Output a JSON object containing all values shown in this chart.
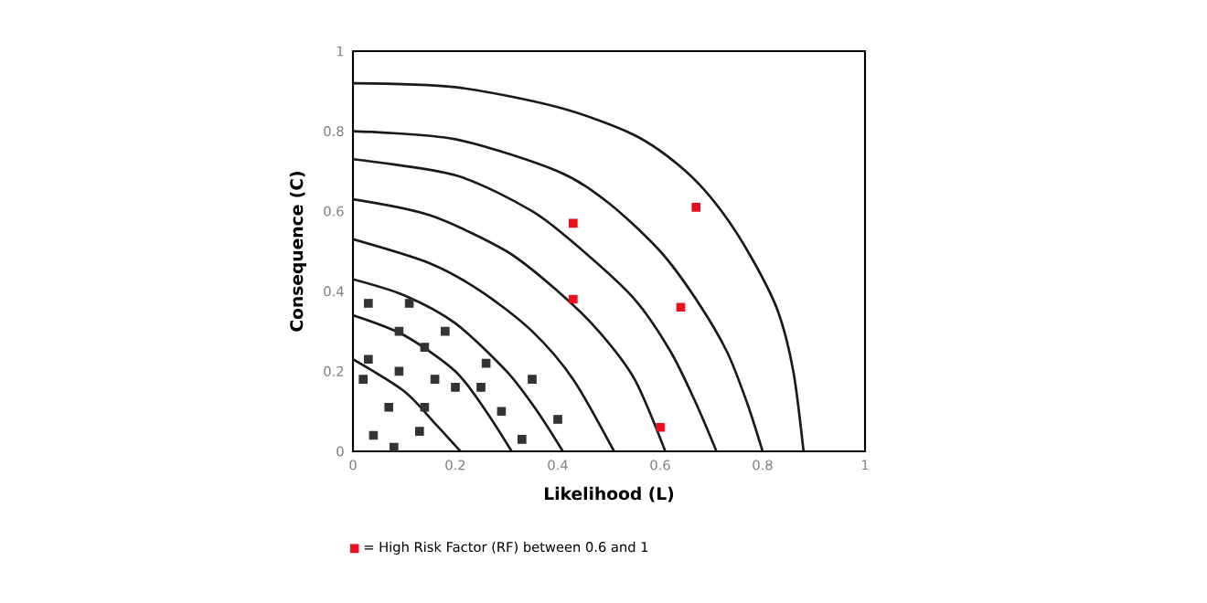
{
  "chart_data": {
    "type": "scatter",
    "xlabel": "Likelihood (L)",
    "ylabel": "Consequence (C)",
    "xlim": [
      0,
      1
    ],
    "ylim": [
      0,
      1
    ],
    "xticks": [
      0,
      0.2,
      0.4,
      0.6,
      0.8,
      1
    ],
    "yticks": [
      0,
      0.2,
      0.4,
      0.6,
      0.8,
      1
    ],
    "grid": false,
    "legend": "bottom left",
    "marker": "square",
    "series": [
      {
        "color": "#333333",
        "x": [
          0.03,
          0.11,
          0.03,
          0.09,
          0.18,
          0.14,
          0.02,
          0.09,
          0.16,
          0.2,
          0.26,
          0.25,
          0.35,
          0.07,
          0.14,
          0.29,
          0.4,
          0.04,
          0.08,
          0.13,
          0.33
        ],
        "values": [
          0.37,
          0.37,
          0.23,
          0.3,
          0.3,
          0.26,
          0.18,
          0.2,
          0.18,
          0.16,
          0.22,
          0.16,
          0.18,
          0.11,
          0.11,
          0.1,
          0.08,
          0.04,
          0.01,
          0.05,
          0.03
        ]
      },
      {
        "name": "= High Risk Factor (RF) between 0.6 and 1",
        "color": "#e8101e",
        "x": [
          0.43,
          0.64,
          0.6,
          0.43,
          0.67
        ],
        "values": [
          0.38,
          0.36,
          0.06,
          0.57,
          0.61
        ]
      },
      {
        "type": "line",
        "marker": "none",
        "color": "#1a1a1a",
        "x": [
          0,
          0.1,
          0.16,
          0.21
        ],
        "values": [
          0.23,
          0.15,
          0.07,
          0
        ]
      },
      {
        "type": "line",
        "marker": "none",
        "color": "#1a1a1a",
        "x": [
          0,
          0.1,
          0.2,
          0.26,
          0.31
        ],
        "values": [
          0.34,
          0.29,
          0.2,
          0.1,
          0
        ]
      },
      {
        "type": "line",
        "marker": "none",
        "color": "#1a1a1a",
        "x": [
          0,
          0.1,
          0.2,
          0.3,
          0.36,
          0.41
        ],
        "values": [
          0.43,
          0.39,
          0.32,
          0.2,
          0.1,
          0
        ]
      },
      {
        "type": "line",
        "marker": "none",
        "color": "#1a1a1a",
        "x": [
          0,
          0.15,
          0.25,
          0.35,
          0.43,
          0.51
        ],
        "values": [
          0.53,
          0.47,
          0.4,
          0.3,
          0.18,
          0
        ]
      },
      {
        "type": "line",
        "marker": "none",
        "color": "#1a1a1a",
        "x": [
          0,
          0.15,
          0.3,
          0.4,
          0.48,
          0.55,
          0.61
        ],
        "values": [
          0.63,
          0.59,
          0.5,
          0.4,
          0.3,
          0.18,
          0
        ]
      },
      {
        "type": "line",
        "marker": "none",
        "color": "#1a1a1a",
        "x": [
          0,
          0.2,
          0.35,
          0.45,
          0.55,
          0.62,
          0.67,
          0.71
        ],
        "values": [
          0.73,
          0.69,
          0.6,
          0.5,
          0.38,
          0.25,
          0.12,
          0
        ]
      },
      {
        "type": "line",
        "marker": "none",
        "color": "#1a1a1a",
        "x": [
          0,
          0.2,
          0.4,
          0.5,
          0.6,
          0.67,
          0.73,
          0.77,
          0.8
        ],
        "values": [
          0.8,
          0.78,
          0.7,
          0.62,
          0.5,
          0.38,
          0.25,
          0.12,
          0
        ]
      },
      {
        "type": "line",
        "marker": "none",
        "color": "#1a1a1a",
        "x": [
          0,
          0.2,
          0.4,
          0.55,
          0.65,
          0.72,
          0.78,
          0.83,
          0.86,
          0.88
        ],
        "values": [
          0.92,
          0.91,
          0.86,
          0.79,
          0.7,
          0.6,
          0.48,
          0.35,
          0.2,
          0
        ]
      }
    ]
  }
}
